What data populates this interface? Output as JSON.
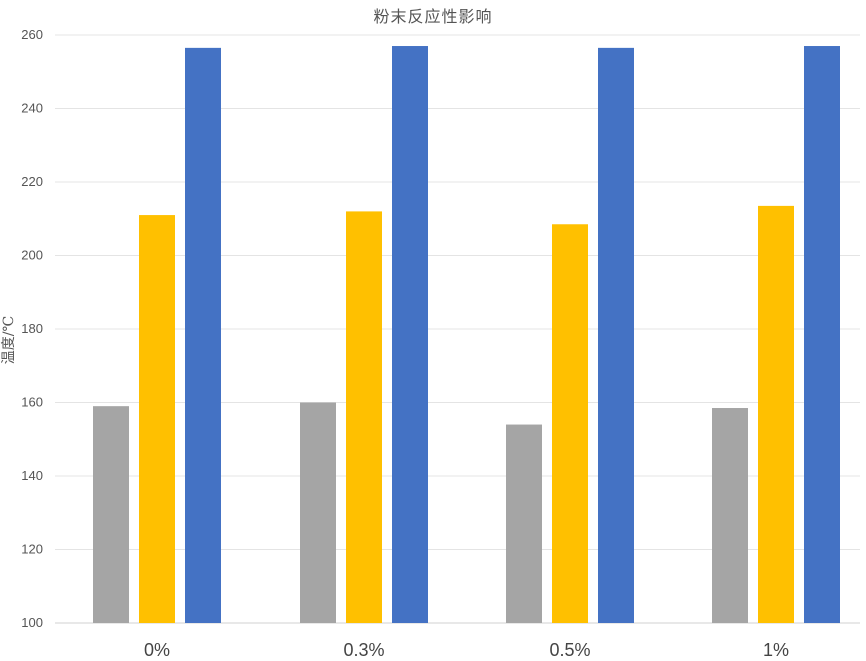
{
  "chart_data": {
    "type": "bar",
    "title": "粉末反应性影响",
    "xlabel": "",
    "ylabel": "温度/℃",
    "ylim": [
      100,
      260
    ],
    "yticks": [
      100,
      120,
      140,
      160,
      180,
      200,
      220,
      240,
      260
    ],
    "categories": [
      "0%",
      "0.3%",
      "0.5%",
      "1%"
    ],
    "series": [
      {
        "color": "#a5a5a5",
        "values": [
          159,
          160,
          154,
          158.5
        ]
      },
      {
        "color": "#ffc000",
        "values": [
          211,
          212,
          208.5,
          213.5
        ]
      },
      {
        "color": "#4472c4",
        "values": [
          256.5,
          257,
          256.5,
          257
        ]
      }
    ],
    "grid": true,
    "legend": "none"
  }
}
